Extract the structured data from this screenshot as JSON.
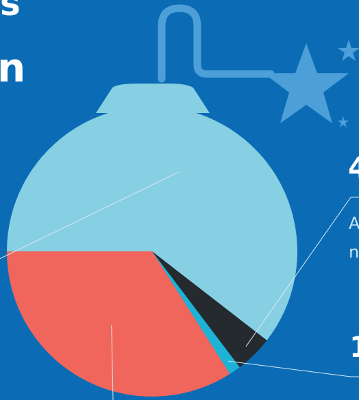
{
  "fragments": {
    "top_text": "s",
    "mid_text": "n",
    "value_a": "4",
    "value_b": "1",
    "note_a": "A",
    "note_b": "n"
  },
  "colors": {
    "background": "#0b6cb5",
    "hanger": "#4d9fd8",
    "star": "#4d9fd8",
    "leader": "#dbe9f2"
  },
  "icons": [
    "ornament-hanger-icon",
    "star-icon"
  ],
  "chart_data": {
    "type": "pie",
    "title": "",
    "start_angle_deg": 180,
    "legend": "none",
    "slices": [
      {
        "label": "",
        "value": 60.5,
        "color": "#87cfe2"
      },
      {
        "label": "",
        "value": 4.2,
        "color": "#252a2e"
      },
      {
        "label": "",
        "value": 1.3,
        "color": "#1eb3d5"
      },
      {
        "label": "",
        "value": 34.0,
        "color": "#f0665c"
      }
    ]
  }
}
